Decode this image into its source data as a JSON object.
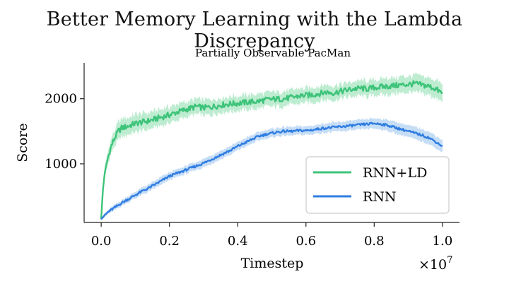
{
  "page": {
    "title": "Better Memory Learning with the Lambda Discrepancy"
  },
  "chart_data": {
    "type": "line",
    "title": "Partially Observable PacMan",
    "xlabel": "Timestep",
    "ylabel": "Score",
    "x_multiplier_label": "×10^7",
    "x_multiplier_base": "×10",
    "x_multiplier_exp": "7",
    "xlim": [
      -0.05,
      1.05
    ],
    "ylim": [
      100,
      2550
    ],
    "xticks": [
      0.0,
      0.2,
      0.4,
      0.6,
      0.8,
      1.0
    ],
    "xtick_labels": [
      "0.0",
      "0.2",
      "0.4",
      "0.6",
      "0.8",
      "1.0"
    ],
    "yticks": [
      1000,
      2000
    ],
    "ytick_labels": [
      "1000",
      "2000"
    ],
    "grid": false,
    "legend_position": "lower-right",
    "series": [
      {
        "name": "RNN+LD",
        "color": "#3ec47a",
        "band_color": "#a8e6c2",
        "x": [
          0.0,
          0.005,
          0.01,
          0.02,
          0.03,
          0.04,
          0.05,
          0.06,
          0.08,
          0.1,
          0.12,
          0.14,
          0.16,
          0.18,
          0.2,
          0.22,
          0.24,
          0.26,
          0.28,
          0.3,
          0.32,
          0.34,
          0.36,
          0.38,
          0.4,
          0.42,
          0.44,
          0.46,
          0.48,
          0.5,
          0.52,
          0.54,
          0.56,
          0.58,
          0.6,
          0.62,
          0.64,
          0.66,
          0.68,
          0.7,
          0.72,
          0.74,
          0.76,
          0.78,
          0.8,
          0.82,
          0.84,
          0.86,
          0.88,
          0.9,
          0.92,
          0.94,
          0.96,
          0.98,
          1.0
        ],
        "y": [
          150,
          600,
          850,
          1100,
          1280,
          1400,
          1500,
          1550,
          1580,
          1620,
          1640,
          1660,
          1690,
          1720,
          1750,
          1790,
          1820,
          1850,
          1880,
          1860,
          1870,
          1890,
          1910,
          1920,
          1930,
          1940,
          1950,
          1960,
          1980,
          1990,
          1995,
          2000,
          2020,
          2040,
          2050,
          2060,
          2080,
          2100,
          2090,
          2110,
          2130,
          2150,
          2160,
          2150,
          2170,
          2180,
          2190,
          2200,
          2210,
          2220,
          2230,
          2210,
          2190,
          2150,
          2080
        ],
        "band": [
          20,
          60,
          80,
          90,
          100,
          110,
          120,
          120,
          120,
          120,
          120,
          120,
          115,
          115,
          110,
          110,
          110,
          105,
          105,
          105,
          105,
          100,
          100,
          100,
          100,
          100,
          100,
          100,
          100,
          100,
          100,
          100,
          100,
          100,
          100,
          100,
          100,
          100,
          100,
          100,
          100,
          100,
          105,
          105,
          105,
          110,
          110,
          110,
          115,
          115,
          120,
          120,
          120,
          125,
          130
        ]
      },
      {
        "name": "RNN",
        "color": "#2f7de1",
        "band_color": "#b3d1f3",
        "x": [
          0.0,
          0.01,
          0.02,
          0.04,
          0.06,
          0.08,
          0.1,
          0.12,
          0.14,
          0.16,
          0.18,
          0.2,
          0.22,
          0.24,
          0.26,
          0.28,
          0.3,
          0.32,
          0.34,
          0.36,
          0.38,
          0.4,
          0.42,
          0.44,
          0.46,
          0.48,
          0.5,
          0.52,
          0.54,
          0.56,
          0.58,
          0.6,
          0.62,
          0.64,
          0.66,
          0.68,
          0.7,
          0.72,
          0.74,
          0.76,
          0.78,
          0.8,
          0.82,
          0.84,
          0.86,
          0.88,
          0.9,
          0.92,
          0.94,
          0.96,
          0.98,
          1.0
        ],
        "y": [
          150,
          210,
          260,
          330,
          400,
          460,
          520,
          580,
          630,
          690,
          750,
          810,
          850,
          890,
          930,
          970,
          1010,
          1060,
          1110,
          1160,
          1210,
          1270,
          1320,
          1370,
          1420,
          1450,
          1470,
          1490,
          1500,
          1500,
          1510,
          1510,
          1520,
          1540,
          1550,
          1560,
          1570,
          1580,
          1590,
          1600,
          1610,
          1620,
          1610,
          1590,
          1560,
          1530,
          1500,
          1470,
          1440,
          1400,
          1340,
          1270
        ],
        "band": [
          20,
          25,
          30,
          35,
          40,
          45,
          45,
          50,
          50,
          50,
          55,
          55,
          55,
          55,
          55,
          55,
          60,
          60,
          60,
          60,
          60,
          60,
          60,
          60,
          60,
          60,
          60,
          60,
          60,
          60,
          60,
          60,
          60,
          65,
          65,
          65,
          65,
          70,
          70,
          70,
          70,
          75,
          80,
          80,
          85,
          85,
          85,
          90,
          90,
          90,
          90,
          90
        ]
      }
    ]
  }
}
